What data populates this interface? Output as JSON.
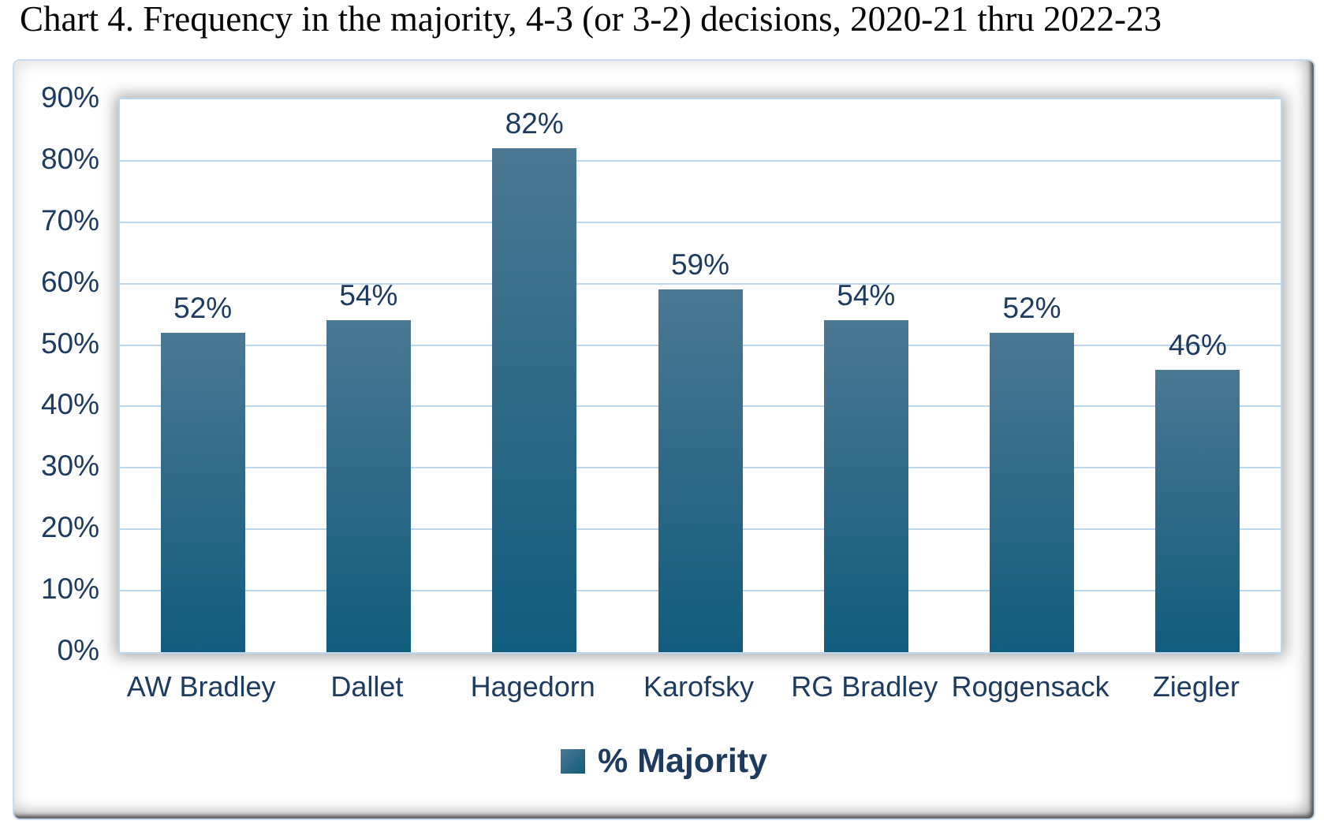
{
  "chart_data": {
    "type": "bar",
    "title": "Chart 4. Frequency in the majority, 4-3 (or 3-2) decisions, 2020-21 thru 2022-23",
    "categories": [
      "AW Bradley",
      "Dallet",
      "Hagedorn",
      "Karofsky",
      "RG Bradley",
      "Roggensack",
      "Ziegler"
    ],
    "values": [
      52,
      54,
      82,
      59,
      54,
      52,
      46
    ],
    "value_labels": [
      "52%",
      "54%",
      "82%",
      "59%",
      "54%",
      "52%",
      "46%"
    ],
    "series_name": "% Majority",
    "xlabel": "",
    "ylabel": "",
    "ylim": [
      0,
      90
    ],
    "ytick_labels": [
      "0%",
      "10%",
      "20%",
      "30%",
      "40%",
      "50%",
      "60%",
      "70%",
      "80%",
      "90%"
    ],
    "grid": true,
    "legend_position": "bottom",
    "colors": {
      "bar_top": "#4b7893",
      "bar_mid": "#2b6885",
      "bar_bottom": "#115d7d",
      "gridline": "#bdd7ee",
      "axis_text": "#1d3a5f",
      "title_text": "#050505"
    }
  }
}
